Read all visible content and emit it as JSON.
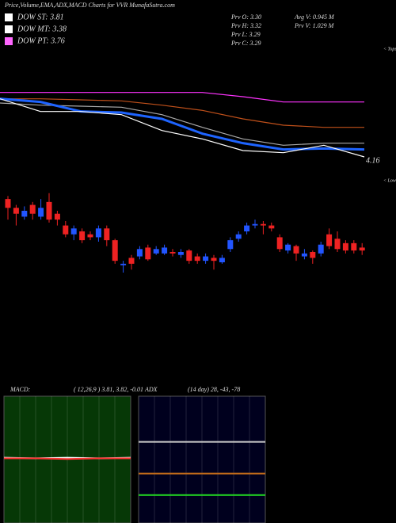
{
  "title": "Price,Volume,EMA,ADX,MACD Charts for VVR MunafaSutra.com",
  "legend": [
    {
      "label": "DOW ST: 3.81",
      "color": "#ffffff"
    },
    {
      "label": "DOW MT: 3.38",
      "color": "#ffffff"
    },
    {
      "label": "DOW PT: 3.76",
      "color": "#ff66ff"
    }
  ],
  "info": [
    "Prv  O: 3.30",
    "Prv  H: 3.32",
    "Prv  L: 3.29",
    "Prv  C: 3.29",
    "Avg  V: 0.945 M",
    "Prv  V: 1.029 M"
  ],
  "chart_data": [
    {
      "type": "line",
      "label": "4.16",
      "side_label": "< Tops",
      "ylim": [
        4.1,
        5.0
      ],
      "series": [
        {
          "color": "#ff33ff",
          "values": [
            4.8,
            4.8,
            4.8,
            4.8,
            4.8,
            4.8,
            4.76,
            4.71,
            4.71,
            4.71
          ]
        },
        {
          "color": "#c0501a",
          "values": [
            4.74,
            4.74,
            4.73,
            4.72,
            4.68,
            4.63,
            4.55,
            4.49,
            4.47,
            4.47
          ]
        },
        {
          "color": "#aaaaaa",
          "values": [
            4.7,
            4.68,
            4.67,
            4.66,
            4.59,
            4.47,
            4.36,
            4.3,
            4.32,
            4.32
          ]
        },
        {
          "color": "#1e64ff",
          "values": [
            4.74,
            4.71,
            4.62,
            4.61,
            4.55,
            4.41,
            4.32,
            4.26,
            4.27,
            4.26
          ]
        },
        {
          "color": "#ffffff",
          "values": [
            4.74,
            4.62,
            4.62,
            4.59,
            4.44,
            4.36,
            4.25,
            4.23,
            4.3,
            4.19
          ]
        }
      ]
    },
    {
      "type": "candlestick",
      "side_label": "< Lows",
      "ylim": [
        3.2,
        3.9
      ],
      "up_color": "#2255ff",
      "down_color": "#ee2222",
      "open": [
        3.84,
        3.78,
        3.72,
        3.8,
        3.72,
        3.82,
        3.74,
        3.66,
        3.6,
        3.62,
        3.6,
        3.58,
        3.64,
        3.56,
        3.39,
        3.44,
        3.45,
        3.51,
        3.47,
        3.47,
        3.48,
        3.46,
        3.49,
        3.45,
        3.42,
        3.44,
        3.41,
        3.5,
        3.57,
        3.62,
        3.66,
        3.67,
        3.66,
        3.58,
        3.49,
        3.52,
        3.45,
        3.48,
        3.47,
        3.6,
        3.57,
        3.54,
        3.54,
        3.51
      ],
      "high": [
        3.86,
        3.8,
        3.79,
        3.82,
        3.84,
        3.88,
        3.76,
        3.69,
        3.66,
        3.64,
        3.62,
        3.66,
        3.66,
        3.57,
        3.42,
        3.46,
        3.52,
        3.53,
        3.52,
        3.53,
        3.5,
        3.5,
        3.5,
        3.47,
        3.47,
        3.46,
        3.46,
        3.58,
        3.62,
        3.68,
        3.7,
        3.69,
        3.68,
        3.6,
        3.54,
        3.53,
        3.5,
        3.49,
        3.55,
        3.64,
        3.62,
        3.56,
        3.56,
        3.54
      ],
      "low": [
        3.7,
        3.66,
        3.7,
        3.7,
        3.7,
        3.68,
        3.66,
        3.58,
        3.56,
        3.54,
        3.56,
        3.55,
        3.52,
        3.4,
        3.34,
        3.36,
        3.43,
        3.42,
        3.46,
        3.46,
        3.45,
        3.44,
        3.4,
        3.4,
        3.4,
        3.36,
        3.4,
        3.48,
        3.55,
        3.6,
        3.64,
        3.6,
        3.62,
        3.48,
        3.47,
        3.42,
        3.43,
        3.4,
        3.45,
        3.5,
        3.48,
        3.47,
        3.47,
        3.46
      ],
      "close": [
        3.78,
        3.74,
        3.76,
        3.74,
        3.78,
        3.7,
        3.7,
        3.6,
        3.64,
        3.56,
        3.58,
        3.64,
        3.56,
        3.42,
        3.4,
        3.4,
        3.5,
        3.43,
        3.5,
        3.51,
        3.47,
        3.48,
        3.42,
        3.42,
        3.45,
        3.42,
        3.44,
        3.56,
        3.6,
        3.66,
        3.67,
        3.66,
        3.64,
        3.5,
        3.53,
        3.47,
        3.47,
        3.44,
        3.53,
        3.52,
        3.5,
        3.49,
        3.49,
        3.49
      ]
    },
    {
      "type": "line",
      "title": "MACD:",
      "label": "( 12,26,9 ) 3.81, 3.82, -0.01",
      "ylim": [
        -1,
        1
      ],
      "background": "#063806",
      "series": [
        {
          "color": "#ffffff",
          "values": [
            0.03,
            0.02,
            0.03,
            0.02,
            0.03
          ]
        },
        {
          "color": "#ff3333",
          "values": [
            0.02,
            0.02,
            0.01,
            0.02,
            0.02
          ]
        }
      ]
    },
    {
      "type": "line",
      "title": "ADX",
      "label": "(14  day) 28, -43, -78",
      "ylim": [
        0,
        100
      ],
      "background": "#00001e",
      "series": [
        {
          "color": "#cccccc",
          "values": [
            64,
            64,
            64,
            64,
            64
          ]
        },
        {
          "color": "#c06a1a",
          "values": [
            39,
            39,
            39,
            39,
            39
          ]
        },
        {
          "color": "#22dd22",
          "values": [
            22,
            22,
            22,
            22,
            22
          ]
        }
      ]
    }
  ]
}
